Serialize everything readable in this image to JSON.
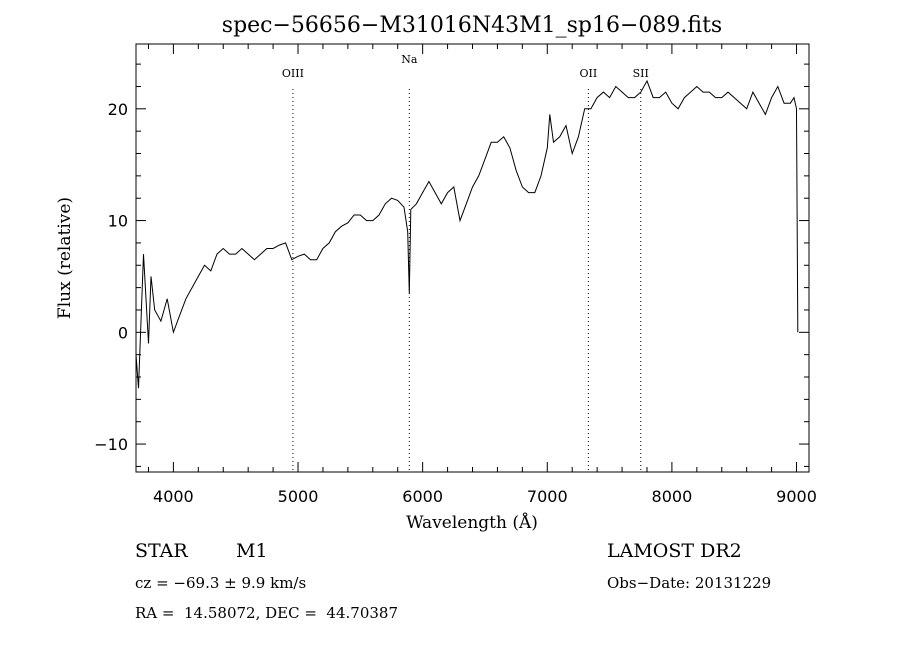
{
  "chart_data": {
    "type": "line",
    "title": "spec−56656−M31016N43M1_sp16−089.fits",
    "xlabel": "Wavelength (Å)",
    "ylabel": "Flux (relative)",
    "xlim": [
      3700,
      9100
    ],
    "ylim": [
      -12.5,
      25.8
    ],
    "xticks": [
      4000,
      5000,
      6000,
      7000,
      8000,
      9000
    ],
    "xtick_labels": [
      "4000",
      "5000",
      "6000",
      "7000",
      "8000",
      "9000"
    ],
    "yticks": [
      -10,
      0,
      10,
      20
    ],
    "ytick_labels": [
      "−10",
      "0",
      "10",
      "20"
    ],
    "grid": false,
    "series": [
      {
        "x": [
          3700,
          3720,
          3740,
          3760,
          3780,
          3800,
          3820,
          3850,
          3900,
          3950,
          4000,
          4050,
          4100,
          4150,
          4200,
          4250,
          4300,
          4350,
          4400,
          4450,
          4500,
          4550,
          4600,
          4650,
          4700,
          4750,
          4800,
          4850,
          4900,
          4950,
          5000,
          5050,
          5100,
          5150,
          5200,
          5250,
          5300,
          5350,
          5400,
          5450,
          5500,
          5550,
          5600,
          5650,
          5700,
          5750,
          5800,
          5850,
          5880,
          5893,
          5905,
          5950,
          6000,
          6050,
          6100,
          6150,
          6200,
          6250,
          6300,
          6350,
          6400,
          6450,
          6500,
          6550,
          6600,
          6650,
          6700,
          6750,
          6800,
          6850,
          6900,
          6950,
          7000,
          7020,
          7050,
          7100,
          7150,
          7200,
          7250,
          7300,
          7350,
          7400,
          7450,
          7500,
          7550,
          7600,
          7650,
          7700,
          7750,
          7800,
          7850,
          7900,
          7950,
          8000,
          8050,
          8100,
          8150,
          8200,
          8250,
          8300,
          8350,
          8400,
          8450,
          8500,
          8550,
          8600,
          8650,
          8700,
          8750,
          8800,
          8850,
          8900,
          8950,
          8980,
          9000,
          9010
        ],
        "y": [
          -2,
          -5,
          1,
          7,
          3,
          -1,
          5,
          2,
          1,
          3,
          0,
          1.5,
          3,
          4,
          5,
          6,
          5.5,
          7,
          7.5,
          7,
          7,
          7.5,
          7,
          6.5,
          7,
          7.5,
          7.5,
          7.8,
          8,
          6.5,
          6.8,
          7,
          6.5,
          6.5,
          7.5,
          8,
          9,
          9.5,
          9.8,
          10.5,
          10.5,
          10,
          10,
          10.5,
          11.5,
          12,
          11.8,
          11.2,
          9,
          3.5,
          11,
          11.5,
          12.5,
          13.5,
          12.5,
          11.5,
          12.5,
          13,
          10,
          11.5,
          13,
          14,
          15.5,
          17,
          17,
          17.5,
          16.5,
          14.5,
          13,
          12.5,
          12.5,
          14,
          16.5,
          19.5,
          17,
          17.5,
          18.5,
          16,
          17.5,
          20,
          20,
          21,
          21.5,
          21,
          22,
          21.5,
          21,
          21,
          21.5,
          22.5,
          21,
          21,
          21.5,
          20.5,
          20,
          21,
          21.5,
          22,
          21.5,
          21.5,
          21,
          21,
          21.5,
          21,
          20.5,
          20,
          21.5,
          20.5,
          19.5,
          21,
          22,
          20.5,
          20.5,
          21,
          20,
          0
        ]
      }
    ],
    "line_markers": [
      {
        "label": "OIII",
        "x": 4959
      },
      {
        "label": "Na",
        "x": 5893
      },
      {
        "label": "OII",
        "x": 7330
      },
      {
        "label": "SII",
        "x": 7750
      }
    ]
  },
  "info": {
    "object_class": "STAR",
    "subclass": "M1",
    "survey": "LAMOST DR2",
    "velocity": "cz = −69.3 ± 9.9 km/s",
    "obs_date": "Obs−Date: 20131229",
    "coords": "RA =  14.58072, DEC =  44.70387"
  }
}
